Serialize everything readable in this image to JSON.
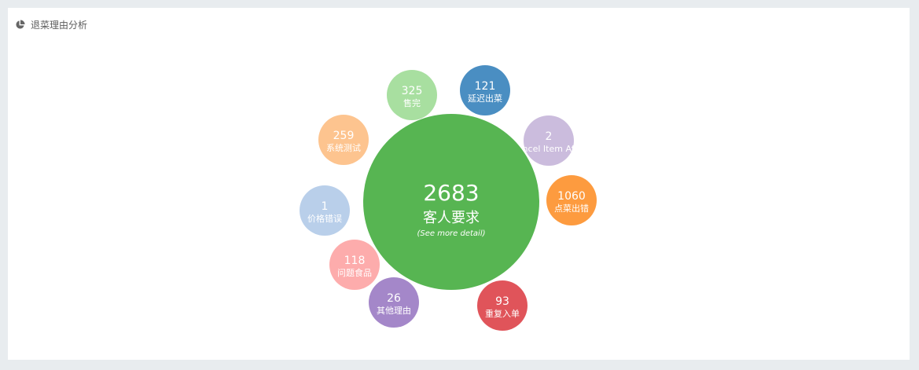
{
  "panel": {
    "title": "退菜理由分析",
    "icon": "pie-chart-icon"
  },
  "chart_data": {
    "type": "bubble",
    "center": {
      "value": 2683,
      "label": "客人要求",
      "detail": "(See more detail)",
      "color": "#57b552"
    },
    "bubbles": [
      {
        "value": 325,
        "label": "售完",
        "color": "#a8dfa0"
      },
      {
        "value": 121,
        "label": "延迟出菜",
        "color": "#4a8ec2"
      },
      {
        "value": 2,
        "label": "Cancel Item After",
        "color": "#cbbcdd"
      },
      {
        "value": 1060,
        "label": "点菜出错",
        "color": "#fd9b3f"
      },
      {
        "value": 93,
        "label": "重复入单",
        "color": "#e0545a"
      },
      {
        "value": 26,
        "label": "其他理由",
        "color": "#a487c9"
      },
      {
        "value": 118,
        "label": "问题食品",
        "color": "#fdacac"
      },
      {
        "value": 1,
        "label": "价格错误",
        "color": "#b9cfea"
      },
      {
        "value": 259,
        "label": "系统测试",
        "color": "#fdc48f"
      }
    ]
  }
}
